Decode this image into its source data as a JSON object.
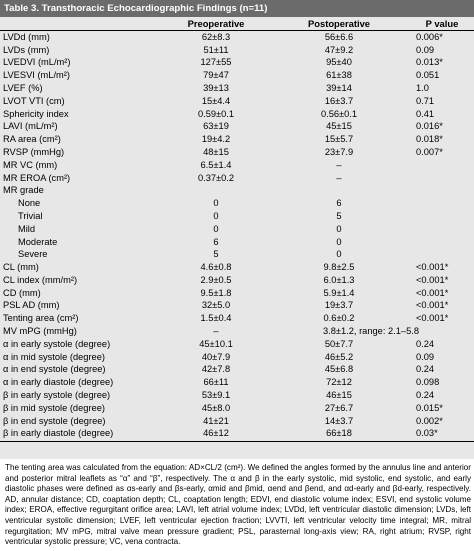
{
  "title": "Table 3.  Transthoracic Echocardiographic Findings (n=11)",
  "headers": [
    "",
    "Preoperative",
    "Postoperative",
    "P value"
  ],
  "rows": [
    {
      "label": "LVDd (mm)",
      "pre": "62±8.3",
      "post": "56±6.6",
      "p": "0.006*"
    },
    {
      "label": "LVDs (mm)",
      "pre": "51±11",
      "post": "47±9.2",
      "p": "0.09"
    },
    {
      "label": "LVEDVI (mL/m²)",
      "pre": "127±55",
      "post": "95±40",
      "p": "0.013*"
    },
    {
      "label": "LVESVI (mL/m²)",
      "pre": "79±47",
      "post": "61±38",
      "p": "0.051"
    },
    {
      "label": "LVEF (%)",
      "pre": "39±13",
      "post": "39±14",
      "p": "1.0"
    },
    {
      "label": "LVOT VTI (cm)",
      "pre": "15±4.4",
      "post": "16±3.7",
      "p": "0.71"
    },
    {
      "label": "Sphericity index",
      "pre": "0.59±0.1",
      "post": "0.56±0.1",
      "p": "0.41"
    },
    {
      "label": "LAVI (mL/m²)",
      "pre": "63±19",
      "post": "45±15",
      "p": "0.016*"
    },
    {
      "label": "RA area (cm²)",
      "pre": "19±4.2",
      "post": "15±5.7",
      "p": "0.018*"
    },
    {
      "label": "RVSP (mmHg)",
      "pre": "48±15",
      "post": "23±7.9",
      "p": "0.007*"
    },
    {
      "label": "MR VC (mm)",
      "pre": "6.5±1.4",
      "post": "–",
      "p": ""
    },
    {
      "label": "MR EROA (cm²)",
      "pre": "0.37±0.2",
      "post": "–",
      "p": ""
    },
    {
      "label": "MR grade",
      "pre": "",
      "post": "",
      "p": ""
    },
    {
      "label": "None",
      "sub": true,
      "pre": "0",
      "post": "6",
      "p": ""
    },
    {
      "label": "Trivial",
      "sub": true,
      "pre": "0",
      "post": "5",
      "p": ""
    },
    {
      "label": "Mild",
      "sub": true,
      "pre": "0",
      "post": "0",
      "p": ""
    },
    {
      "label": "Moderate",
      "sub": true,
      "pre": "6",
      "post": "0",
      "p": ""
    },
    {
      "label": "Severe",
      "sub": true,
      "pre": "5",
      "post": "0",
      "p": ""
    },
    {
      "label": "CL (mm)",
      "pre": "4.6±0.8",
      "post": "9.8±2.5",
      "p": "<0.001*"
    },
    {
      "label": "CL index (mm/m²)",
      "pre": "2.9±0.5",
      "post": "6.0±1.3",
      "p": "<0.001*"
    },
    {
      "label": "CD (mm)",
      "pre": "9.5±1.8",
      "post": "5.9±1.4",
      "p": "<0.001*"
    },
    {
      "label": "PSL AD (mm)",
      "pre": "32±5.0",
      "post": "19±3.7",
      "p": "<0.001*"
    },
    {
      "label": "Tenting area (cm²)",
      "pre": "1.5±0.4",
      "post": "0.6±0.2",
      "p": "<0.001*"
    },
    {
      "label": "MV mPG (mmHg)",
      "pre": "–",
      "merged": "3.8±1.2, range: 2.1–5.8",
      "p": ""
    },
    {
      "label": "α in early systole (degree)",
      "pre": "45±10.1",
      "post": "50±7.7",
      "p": "0.24"
    },
    {
      "label": "α in mid systole (degree)",
      "pre": "40±7.9",
      "post": "46±5.2",
      "p": "0.09"
    },
    {
      "label": "α in end systole (degree)",
      "pre": "42±7.8",
      "post": "45±6.8",
      "p": "0.24"
    },
    {
      "label": "α in early diastole (degree)",
      "pre": "66±11",
      "post": "72±12",
      "p": "0.098"
    },
    {
      "label": "β in early systole (degree)",
      "pre": "53±9.1",
      "post": "46±15",
      "p": "0.24"
    },
    {
      "label": "β in mid systole (degree)",
      "pre": "45±8.0",
      "post": "27±6.7",
      "p": "0.015*"
    },
    {
      "label": "β in end systole (degree)",
      "pre": "41±21",
      "post": "14±3.7",
      "p": "0.002*"
    },
    {
      "label": "β in early diastole (degree)",
      "pre": "46±12",
      "post": "66±18",
      "p": "0.03*"
    }
  ],
  "footnote": "The tenting area was calculated from the equation: AD×CL/2 (cm²). We defined the angles formed by the annulus line and anterior and posterior mitral leaflets as “α” and “β”, respectively. The α and β in the early systolic, mid systolic, end systolic, and early diastolic phases were defined as αs-early and βs-early, αmid and βmid, αend and βend, and αd-early and βd-early, respectively. AD, annular distance; CD, coaptation depth; CL, coaptation length; EDVI, end diastolic volume index; ESVI, end systolic volume index; EROA, effective regurgitant orifice area; LAVI, left atrial volume index; LVDd, left ventricular diastolic dimension; LVDs, left ventricular systolic dimension; LVEF, left ventricular ejection fraction; LVVTI, left ventricular velocity time integral; MR, mitral regurgitation; MV mPG, mitral valve mean pressure gradient; PSL, parasternal long-axis view; RA, right atrium; RVSP, right ventricular systolic pressure; VC, vena contracta."
}
